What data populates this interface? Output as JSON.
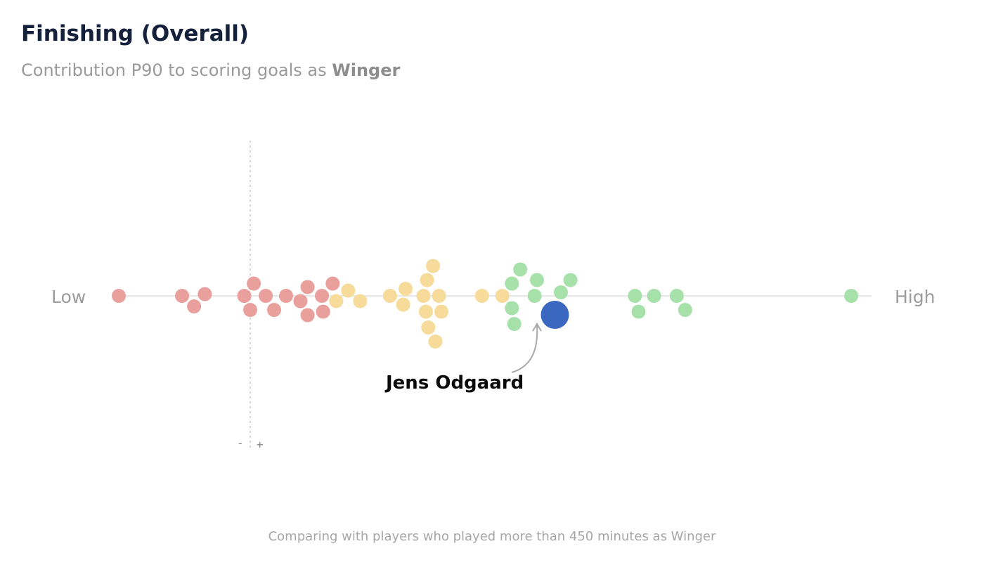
{
  "card": {
    "title": "Finishing (Overall)",
    "subtitle_prefix": "Contribution P90 to scoring goals as ",
    "subtitle_position": "Winger",
    "footer": "Comparing with players who played more than 450 minutes as Winger"
  },
  "chart_data": {
    "type": "scatter",
    "axis": {
      "low_label": "Low",
      "high_label": "High",
      "minus_sign": "-",
      "plus_sign": "+",
      "xlim": [
        -0.12,
        0.5
      ]
    },
    "colors": {
      "low": "#e9a09c",
      "mid": "#f6db9a",
      "high": "#a7e1aa",
      "highlight": "#3a67bf",
      "baseline": "#e6e6e6",
      "zero_line": "#c8c8c8"
    },
    "highlight": {
      "name": "Jens Odgaard",
      "x": 0.255
    },
    "series": [
      {
        "group": "low",
        "x": [
          -0.11,
          -0.057,
          -0.047,
          -0.038,
          -0.005,
          0.0,
          0.003,
          0.013,
          0.02,
          0.03,
          0.042,
          0.048,
          0.048,
          0.06,
          0.061,
          0.069
        ]
      },
      {
        "group": "mid",
        "x": [
          0.072,
          0.082,
          0.092,
          0.117,
          0.128,
          0.13,
          0.145,
          0.147,
          0.148,
          0.149,
          0.153,
          0.155,
          0.158,
          0.16,
          0.194,
          0.211
        ]
      },
      {
        "group": "high",
        "x": [
          0.219,
          0.219,
          0.221,
          0.226,
          0.238,
          0.24,
          0.26,
          0.268,
          0.322,
          0.325,
          0.338,
          0.357,
          0.364,
          0.503
        ]
      }
    ]
  }
}
